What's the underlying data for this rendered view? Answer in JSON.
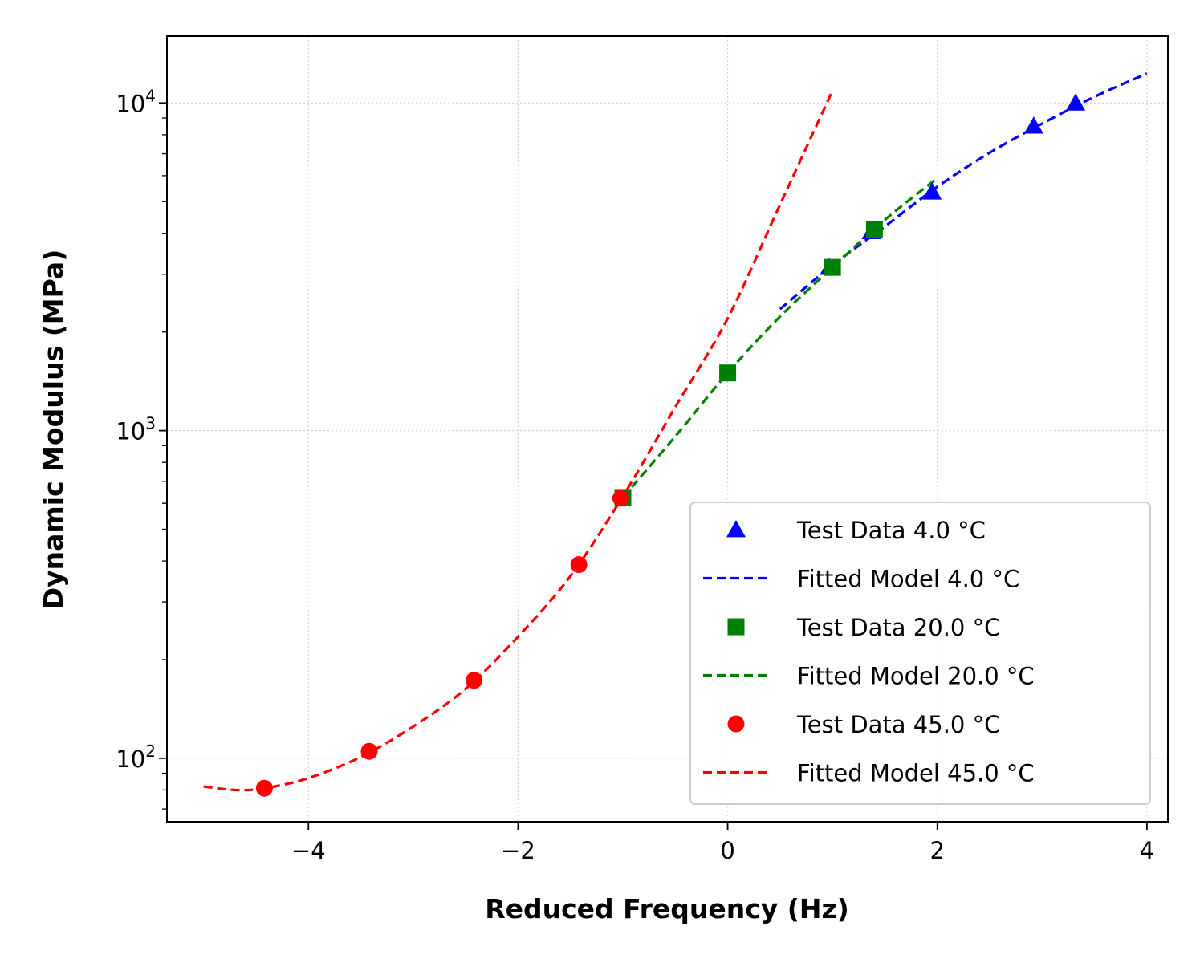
{
  "chart_data": {
    "type": "scatter",
    "xlabel": "Reduced Frequency (Hz)",
    "ylabel": "Dynamic Modulus (MPa)",
    "xlim": [
      -5.35,
      4.2
    ],
    "ylim": [
      64,
      16000
    ],
    "yscale": "log",
    "grid": true,
    "legend_position": "lower-right",
    "x_ticks": [
      {
        "value": -4,
        "label": "−4"
      },
      {
        "value": -2,
        "label": "−2"
      },
      {
        "value": 0,
        "label": "0"
      },
      {
        "value": 2,
        "label": "2"
      },
      {
        "value": 4,
        "label": "4"
      }
    ],
    "y_ticks": [
      {
        "value": 100,
        "base": "10",
        "exp": "2"
      },
      {
        "value": 1000,
        "base": "10",
        "exp": "3"
      },
      {
        "value": 10000,
        "base": "10",
        "exp": "4"
      }
    ],
    "series": [
      {
        "name": "Test Data 4.0 °C",
        "kind": "points",
        "marker": "triangle",
        "color": "#0000ff",
        "x": [
          0.97,
          1.37,
          1.95,
          2.92,
          3.32
        ],
        "y": [
          3150,
          4050,
          5350,
          8500,
          10000
        ]
      },
      {
        "name": "Fitted Model 4.0 °C",
        "kind": "line",
        "color": "#0000ff",
        "x": [
          0.5,
          1.0,
          1.5,
          2.0,
          2.5,
          3.0,
          3.5,
          4.0
        ],
        "y": [
          2350,
          3200,
          4200,
          5550,
          7050,
          8650,
          10450,
          12300
        ]
      },
      {
        "name": "Test Data 20.0 °C",
        "kind": "points",
        "marker": "square",
        "color": "#008000",
        "x": [
          -1.0,
          0.0,
          1.0,
          1.4
        ],
        "y": [
          625,
          1500,
          3150,
          4100
        ]
      },
      {
        "name": "Fitted Model 20.0 °C",
        "kind": "line",
        "color": "#008000",
        "x": [
          -1.0,
          -0.5,
          0.0,
          0.5,
          1.0,
          1.5,
          2.0
        ],
        "y": [
          625,
          960,
          1500,
          2230,
          3150,
          4400,
          5900
        ]
      },
      {
        "name": "Test Data 45.0 °C",
        "kind": "points",
        "marker": "circle",
        "color": "#ff0000",
        "x": [
          -4.42,
          -3.42,
          -2.42,
          -1.42,
          -1.02
        ],
        "y": [
          81,
          105,
          173,
          390,
          622
        ]
      },
      {
        "name": "Fitted Model 45.0 °C",
        "kind": "line",
        "color": "#ff0000",
        "x": [
          -5.0,
          -4.7,
          -4.42,
          -4.0,
          -3.5,
          -3.0,
          -2.5,
          -2.0,
          -1.5,
          -1.0,
          -0.5,
          0.0,
          0.5,
          1.0
        ],
        "y": [
          82,
          80,
          81,
          87,
          101,
          125,
          163,
          235,
          360,
          630,
          1180,
          2200,
          4900,
          10900
        ]
      }
    ]
  }
}
